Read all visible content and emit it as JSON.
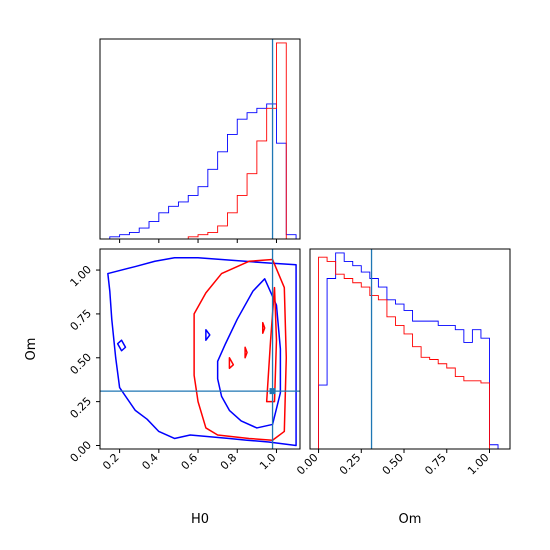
{
  "chart_data": [
    {
      "type": "histogram",
      "panel": "H0-marginal",
      "xlim": [
        0.1,
        1.12
      ],
      "truth": 0.98,
      "bins": [
        0.1,
        0.15,
        0.2,
        0.25,
        0.3,
        0.35,
        0.4,
        0.45,
        0.5,
        0.55,
        0.6,
        0.65,
        0.7,
        0.75,
        0.8,
        0.85,
        0.9,
        0.95,
        1.0,
        1.05,
        1.1
      ],
      "series": [
        {
          "color": "#0000ff",
          "counts": [
            0,
            1,
            2,
            3,
            5,
            8,
            12,
            15,
            17,
            20,
            24,
            32,
            40,
            48,
            55,
            58,
            60,
            62,
            44,
            2
          ]
        },
        {
          "color": "#ff0000",
          "counts": [
            0,
            0,
            0,
            0,
            0,
            0,
            0,
            0,
            0,
            1,
            2,
            3,
            6,
            12,
            20,
            30,
            45,
            60,
            90,
            0
          ]
        }
      ]
    },
    {
      "type": "contour",
      "panel": "H0-Om-joint",
      "xlabel": "H0",
      "ylabel": "Om",
      "xlim": [
        0.1,
        1.12
      ],
      "ylim": [
        -0.02,
        1.12
      ],
      "xticks": [
        "0.2",
        "0.4",
        "0.6",
        "0.8",
        "1.0"
      ],
      "yticks": [
        "0.00",
        "0.25",
        "0.50",
        "0.75",
        "1.00"
      ],
      "truth": [
        0.98,
        0.31
      ],
      "series": [
        {
          "color": "#0000ff",
          "contours": [
            [
              [
                0.14,
                0.98
              ],
              [
                0.28,
                1.02
              ],
              [
                0.38,
                1.05
              ],
              [
                0.48,
                1.07
              ],
              [
                0.6,
                1.07
              ],
              [
                0.72,
                1.06
              ],
              [
                0.84,
                1.05
              ],
              [
                0.96,
                1.04
              ],
              [
                1.1,
                1.03
              ],
              [
                1.1,
                0.0
              ],
              [
                0.96,
                0.02
              ],
              [
                0.85,
                0.03
              ],
              [
                0.76,
                0.04
              ],
              [
                0.66,
                0.05
              ],
              [
                0.56,
                0.06
              ],
              [
                0.48,
                0.04
              ],
              [
                0.4,
                0.08
              ],
              [
                0.34,
                0.15
              ],
              [
                0.28,
                0.2
              ],
              [
                0.2,
                0.33
              ],
              [
                0.18,
                0.5
              ],
              [
                0.16,
                0.72
              ],
              [
                0.15,
                0.88
              ],
              [
                0.14,
                0.98
              ]
            ],
            [
              [
                0.7,
                0.48
              ],
              [
                0.74,
                0.58
              ],
              [
                0.8,
                0.72
              ],
              [
                0.88,
                0.88
              ],
              [
                0.94,
                0.95
              ],
              [
                1.0,
                0.8
              ],
              [
                1.02,
                0.55
              ],
              [
                1.02,
                0.3
              ],
              [
                0.98,
                0.12
              ],
              [
                0.9,
                0.1
              ],
              [
                0.82,
                0.14
              ],
              [
                0.76,
                0.2
              ],
              [
                0.72,
                0.28
              ],
              [
                0.7,
                0.38
              ],
              [
                0.7,
                0.48
              ]
            ],
            [
              [
                0.64,
                0.66
              ],
              [
                0.66,
                0.63
              ],
              [
                0.64,
                0.6
              ],
              [
                0.64,
                0.66
              ]
            ],
            [
              [
                0.19,
                0.58
              ],
              [
                0.21,
                0.6
              ],
              [
                0.23,
                0.56
              ],
              [
                0.21,
                0.54
              ],
              [
                0.19,
                0.58
              ]
            ]
          ]
        },
        {
          "color": "#ff0000",
          "contours": [
            [
              [
                0.58,
                0.75
              ],
              [
                0.64,
                0.87
              ],
              [
                0.72,
                0.98
              ],
              [
                0.86,
                1.05
              ],
              [
                0.98,
                1.06
              ],
              [
                1.04,
                0.9
              ],
              [
                1.05,
                0.5
              ],
              [
                1.04,
                0.08
              ],
              [
                0.98,
                0.03
              ],
              [
                0.86,
                0.04
              ],
              [
                0.78,
                0.05
              ],
              [
                0.7,
                0.06
              ],
              [
                0.64,
                0.1
              ],
              [
                0.6,
                0.25
              ],
              [
                0.58,
                0.4
              ],
              [
                0.58,
                0.55
              ],
              [
                0.58,
                0.75
              ]
            ],
            [
              [
                0.95,
                0.25
              ],
              [
                0.97,
                0.6
              ],
              [
                0.99,
                0.9
              ],
              [
                1.0,
                0.6
              ],
              [
                0.99,
                0.25
              ],
              [
                0.95,
                0.25
              ]
            ],
            [
              [
                0.76,
                0.5
              ],
              [
                0.78,
                0.46
              ],
              [
                0.76,
                0.44
              ],
              [
                0.76,
                0.5
              ]
            ],
            [
              [
                0.84,
                0.56
              ],
              [
                0.85,
                0.53
              ],
              [
                0.84,
                0.5
              ],
              [
                0.84,
                0.56
              ]
            ],
            [
              [
                0.93,
                0.7
              ],
              [
                0.94,
                0.67
              ],
              [
                0.93,
                0.64
              ],
              [
                0.93,
                0.7
              ]
            ]
          ]
        }
      ]
    },
    {
      "type": "histogram",
      "panel": "Om-marginal",
      "xlabel": "Om",
      "xlim": [
        -0.05,
        1.12
      ],
      "xticks": [
        "0.00",
        "0.25",
        "0.50",
        "0.75",
        "1.00"
      ],
      "truth": 0.31,
      "bins": [
        0.0,
        0.05,
        0.1,
        0.15,
        0.2,
        0.25,
        0.3,
        0.35,
        0.4,
        0.45,
        0.5,
        0.55,
        0.6,
        0.65,
        0.7,
        0.75,
        0.8,
        0.85,
        0.9,
        0.95,
        1.0,
        1.05
      ],
      "series": [
        {
          "color": "#0000ff",
          "counts": [
            30,
            80,
            92,
            88,
            86,
            83,
            80,
            76,
            70,
            68,
            65,
            60,
            60,
            60,
            58,
            58,
            56,
            50,
            56,
            52,
            2
          ]
        },
        {
          "color": "#ff0000",
          "counts": [
            90,
            88,
            82,
            80,
            78,
            76,
            72,
            70,
            62,
            58,
            54,
            48,
            43,
            42,
            40,
            38,
            34,
            32,
            32,
            31,
            0
          ]
        }
      ]
    }
  ]
}
